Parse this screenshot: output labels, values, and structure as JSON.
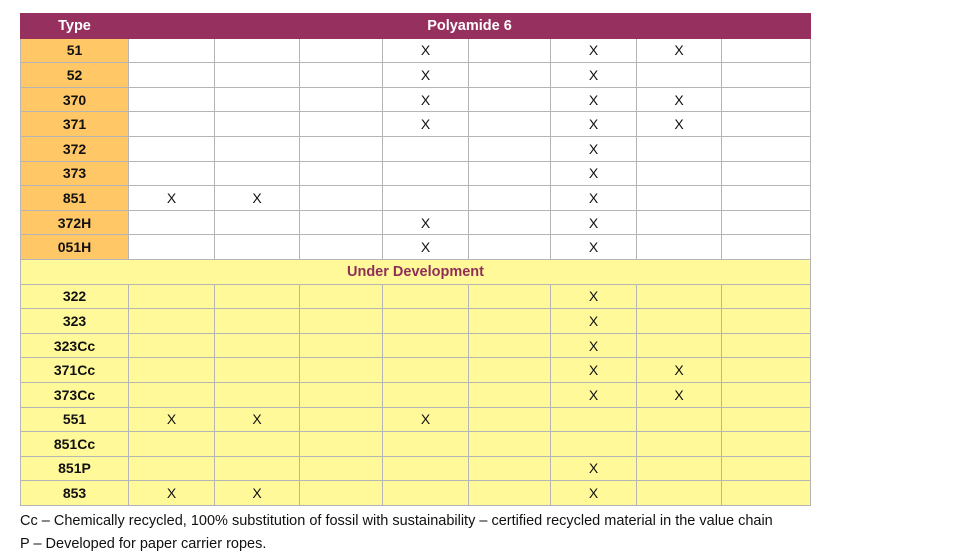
{
  "table": {
    "header": {
      "type_label": "Type",
      "group_label": "Polyamide 6"
    },
    "main_rows": [
      {
        "type": "51",
        "cells": [
          "",
          "",
          "",
          "X",
          "",
          "X",
          "X",
          ""
        ]
      },
      {
        "type": "52",
        "cells": [
          "",
          "",
          "",
          "X",
          "",
          "X",
          "",
          ""
        ]
      },
      {
        "type": "370",
        "cells": [
          "",
          "",
          "",
          "X",
          "",
          "X",
          "X",
          ""
        ]
      },
      {
        "type": "371",
        "cells": [
          "",
          "",
          "",
          "X",
          "",
          "X",
          "X",
          ""
        ]
      },
      {
        "type": "372",
        "cells": [
          "",
          "",
          "",
          "",
          "",
          "X",
          "",
          ""
        ]
      },
      {
        "type": "373",
        "cells": [
          "",
          "",
          "",
          "",
          "",
          "X",
          "",
          ""
        ]
      },
      {
        "type": "851",
        "cells": [
          "X",
          "X",
          "",
          "",
          "",
          "X",
          "",
          ""
        ]
      },
      {
        "type": "372H",
        "cells": [
          "",
          "",
          "",
          "X",
          "",
          "X",
          "",
          ""
        ]
      },
      {
        "type": "051H",
        "cells": [
          "",
          "",
          "",
          "X",
          "",
          "X",
          "",
          ""
        ]
      }
    ],
    "section_label": "Under Development",
    "dev_rows": [
      {
        "type": "322",
        "cells": [
          "",
          "",
          "",
          "",
          "",
          "X",
          "",
          ""
        ]
      },
      {
        "type": "323",
        "cells": [
          "",
          "",
          "",
          "",
          "",
          "X",
          "",
          ""
        ]
      },
      {
        "type": "323Cc",
        "cells": [
          "",
          "",
          "",
          "",
          "",
          "X",
          "",
          ""
        ]
      },
      {
        "type": "371Cc",
        "cells": [
          "",
          "",
          "",
          "",
          "",
          "X",
          "X",
          ""
        ]
      },
      {
        "type": "373Cc",
        "cells": [
          "",
          "",
          "",
          "",
          "",
          "X",
          "X",
          ""
        ]
      },
      {
        "type": "551",
        "cells": [
          "X",
          "X",
          "",
          "X",
          "",
          "",
          "",
          ""
        ]
      },
      {
        "type": "851Cc",
        "cells": [
          "",
          "",
          "",
          "",
          "",
          "",
          "",
          ""
        ]
      },
      {
        "type": "851P",
        "cells": [
          "",
          "",
          "",
          "",
          "",
          "X",
          "",
          ""
        ]
      },
      {
        "type": "853",
        "cells": [
          "X",
          "X",
          "",
          "",
          "",
          "X",
          "",
          ""
        ]
      }
    ]
  },
  "footnotes": [
    "Cc – Chemically recycled, 100% substitution of fossil with sustainability – certified recycled material in the value chain",
    "P – Developed for paper carrier ropes."
  ],
  "colors": {
    "header_bg": "#96305f",
    "type_bg": "#ffc766",
    "dev_bg": "#fff99a",
    "type_text": "#8f2f57"
  }
}
